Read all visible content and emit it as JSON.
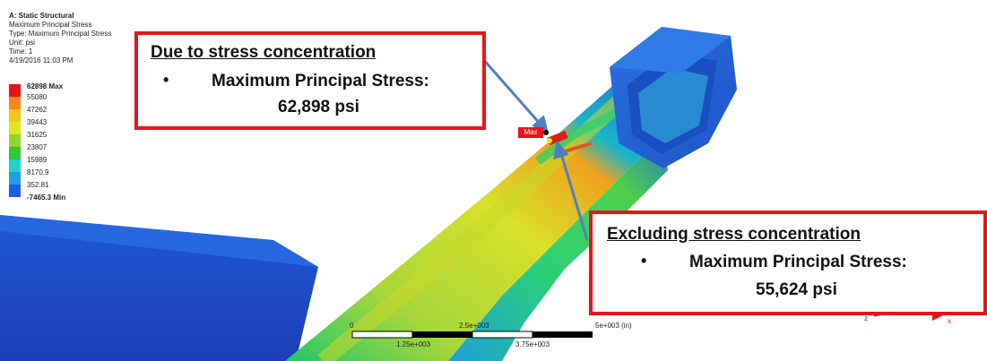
{
  "header": {
    "analysis": "A: Static Structural",
    "result": "Maximum Principal Stress",
    "type": "Type: Maximum Principal Stress",
    "unit": "Unit: psi",
    "time": "Time: 1",
    "date": "4/19/2016 11:03 PM"
  },
  "legend": {
    "items": [
      {
        "label": "62898 Max",
        "color": "#e8141a",
        "bold": true
      },
      {
        "label": "55080",
        "color": "#f58a14"
      },
      {
        "label": "47262",
        "color": "#f7c51c"
      },
      {
        "label": "39443",
        "color": "#dfe81d"
      },
      {
        "label": "31625",
        "color": "#93d62b"
      },
      {
        "label": "23807",
        "color": "#2fc93b"
      },
      {
        "label": "15989",
        "color": "#22d1c5"
      },
      {
        "label": "8170.9",
        "color": "#1aa3e0"
      },
      {
        "label": "352.81",
        "color": "#1b5ee8"
      },
      {
        "label": "-7465.3 Min",
        "color": "#1a2be0",
        "bold": true
      }
    ]
  },
  "callout1": {
    "title": "Due to stress concentration",
    "bullet": "•",
    "label": "Maximum  Principal  Stress:",
    "value": "62,898 psi"
  },
  "callout2": {
    "title": "Excluding  stress concentration",
    "bullet": "•",
    "label": "Maximum  Principal  Stress:",
    "value": "55,624 psi"
  },
  "max_tag": "Max",
  "scale_bar": {
    "top_labels": [
      "0",
      "2.5e+003",
      "5e+003 (in)"
    ],
    "bottom_labels": [
      "1.25e+003",
      "3.75e+003"
    ]
  },
  "triad": {
    "x_label": "x",
    "z_label": "z"
  },
  "colors": {
    "callout_border": "#e8141a",
    "arrow": "#4f7fc0"
  }
}
